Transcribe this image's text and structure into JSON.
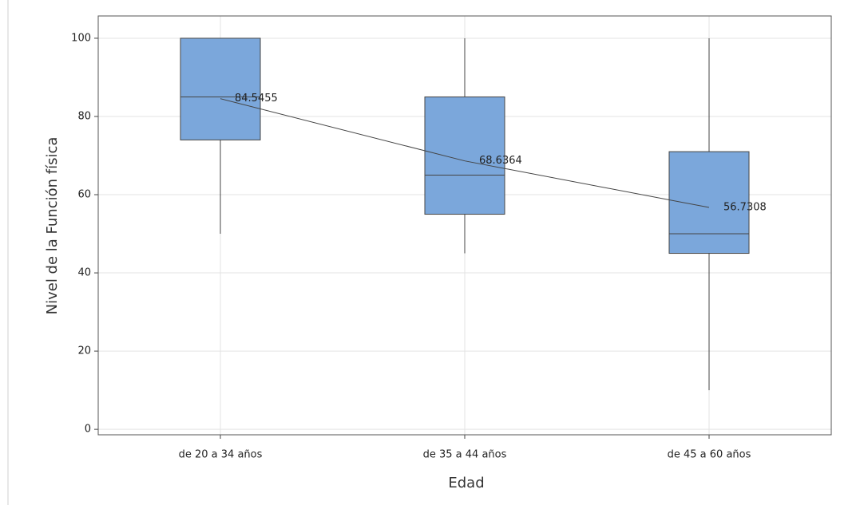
{
  "chart_data": {
    "type": "box",
    "x_label": "Edad",
    "y_label": "Nivel de la Función física",
    "categories": [
      "de 20 a 34 años",
      "de 35 a 44 años",
      "de 45 a 60 años"
    ],
    "whisker_low": [
      50,
      45,
      10
    ],
    "q1": [
      74,
      55,
      45
    ],
    "median": [
      85,
      65,
      50
    ],
    "q3": [
      100,
      85,
      71
    ],
    "whisker_high": [
      100,
      100,
      100
    ],
    "mean": [
      84.5455,
      68.6364,
      56.7308
    ],
    "color": "#7ba7db",
    "mean_color": "#e0474c",
    "ylim": [
      -1.4,
      105.7
    ],
    "yticks": [
      0,
      20,
      40,
      60,
      80,
      100
    ],
    "grid": true
  }
}
